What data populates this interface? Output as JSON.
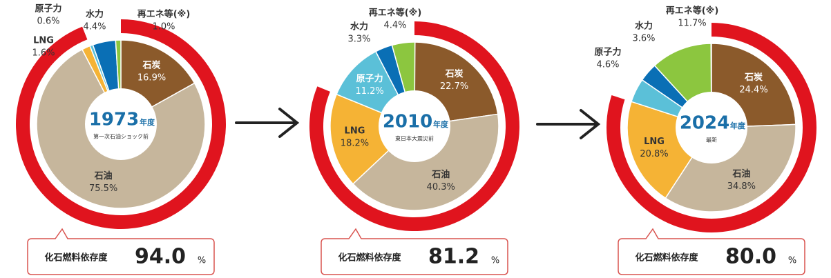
{
  "chart_data": [
    {
      "type": "pie",
      "year": "1973",
      "year_unit": "年度",
      "subtitle": "第一次石油ショック前",
      "categories": [
        "石炭",
        "石油",
        "LNG",
        "原子力",
        "水力",
        "再エネ等(※)"
      ],
      "values": [
        16.9,
        75.5,
        1.6,
        0.6,
        4.4,
        1.0
      ],
      "value_labels": [
        "16.9%",
        "75.5%",
        "1.6%",
        "0.6%",
        "4.4%",
        "1.0%"
      ],
      "colors": [
        "#8b5a2b",
        "#c6b69c",
        "#f5b335",
        "#5bc0d8",
        "#0a6fb5",
        "#8cc63f"
      ],
      "dependency_name": "化石燃料依存度",
      "dependency": 94.0,
      "dependency_label": "94.0",
      "dependency_unit": "%",
      "ring_color": "#e0141e"
    },
    {
      "type": "pie",
      "year": "2010",
      "year_unit": "年度",
      "subtitle": "東日本大震災前",
      "categories": [
        "石炭",
        "石油",
        "LNG",
        "原子力",
        "水力",
        "再エネ等(※)"
      ],
      "values": [
        22.7,
        40.3,
        18.2,
        11.2,
        3.3,
        4.4
      ],
      "value_labels": [
        "22.7%",
        "40.3%",
        "18.2%",
        "11.2%",
        "3.3%",
        "4.4%"
      ],
      "colors": [
        "#8b5a2b",
        "#c6b69c",
        "#f5b335",
        "#5bc0d8",
        "#0a6fb5",
        "#8cc63f"
      ],
      "dependency_name": "化石燃料依存度",
      "dependency": 81.2,
      "dependency_label": "81.2",
      "dependency_unit": "%",
      "ring_color": "#e0141e"
    },
    {
      "type": "pie",
      "year": "2024",
      "year_unit": "年度",
      "subtitle": "最新",
      "categories": [
        "石炭",
        "石油",
        "LNG",
        "原子力",
        "水力",
        "再エネ等(※)"
      ],
      "values": [
        24.4,
        34.8,
        20.8,
        4.6,
        3.6,
        11.7
      ],
      "value_labels": [
        "24.4%",
        "34.8%",
        "20.8%",
        "4.6%",
        "3.6%",
        "11.7%"
      ],
      "colors": [
        "#8b5a2b",
        "#c6b69c",
        "#f5b335",
        "#5bc0d8",
        "#0a6fb5",
        "#8cc63f"
      ],
      "dependency_name": "化石燃料依存度",
      "dependency": 80.0,
      "dependency_label": "80.0",
      "dependency_unit": "%",
      "ring_color": "#e0141e"
    }
  ]
}
